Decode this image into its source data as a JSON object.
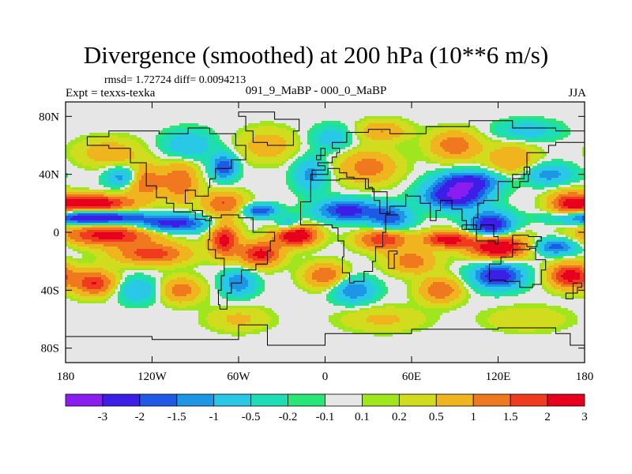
{
  "title": "Divergence (smoothed) at 200 hPa (10**6 m/s)",
  "stats_line": "rmsd= 1.72724 diff= 0.0094213",
  "experiment_label": "Expt = texxs-texka",
  "subtitle": "091_9_MaBP - 000_0_MaBP",
  "season": "JJA",
  "chart_data": {
    "type": "heatmap",
    "title": "Divergence (smoothed) at 200 hPa (10**6 m/s)",
    "xlabel": "",
    "ylabel": "",
    "xlim": [
      -180,
      180
    ],
    "ylim": [
      -90,
      90
    ],
    "x_ticks": [
      {
        "value": -180,
        "label": "180"
      },
      {
        "value": -120,
        "label": "120W"
      },
      {
        "value": -60,
        "label": "60W"
      },
      {
        "value": 0,
        "label": "0"
      },
      {
        "value": 60,
        "label": "60E"
      },
      {
        "value": 120,
        "label": "120E"
      },
      {
        "value": 180,
        "label": "180"
      }
    ],
    "y_ticks": [
      {
        "value": 80,
        "label": "80N"
      },
      {
        "value": 40,
        "label": "40N"
      },
      {
        "value": 0,
        "label": "0"
      },
      {
        "value": -40,
        "label": "40S"
      },
      {
        "value": -80,
        "label": "80S"
      }
    ],
    "colorbar": {
      "boundaries": [
        "-3",
        "-2",
        "-1.5",
        "-1",
        "-0.5",
        "-0.2",
        "-0.1",
        "0.1",
        "0.2",
        "0.5",
        "1",
        "1.5",
        "2",
        "3"
      ],
      "colors": [
        "#8a1ef0",
        "#3c1ee6",
        "#1e5ae6",
        "#1e96e6",
        "#28c8e6",
        "#1edcb4",
        "#28e678",
        "#e6e6e6",
        "#a0e61e",
        "#d2dc1e",
        "#f0b41e",
        "#f0781e",
        "#f03c1e",
        "#e6001e"
      ]
    },
    "features": [
      {
        "lon": -160,
        "lat": 10,
        "value": -3,
        "sx": 24,
        "sy": 3
      },
      {
        "lon": -105,
        "lat": 6,
        "value": -2.4,
        "sx": 16,
        "sy": 4
      },
      {
        "lon": -160,
        "lat": 20,
        "value": 2.6,
        "sx": 18,
        "sy": 4
      },
      {
        "lon": -150,
        "lat": -2,
        "value": 2.3,
        "sx": 22,
        "sy": 5
      },
      {
        "lon": -120,
        "lat": -15,
        "value": 1.8,
        "sx": 18,
        "sy": 5
      },
      {
        "lon": -150,
        "lat": 55,
        "value": 0.8,
        "sx": 16,
        "sy": 7
      },
      {
        "lon": -125,
        "lat": 35,
        "value": 1.5,
        "sx": 10,
        "sy": 8
      },
      {
        "lon": -100,
        "lat": 35,
        "value": 1.4,
        "sx": 8,
        "sy": 10
      },
      {
        "lon": -140,
        "lat": 38,
        "value": -1.5,
        "sx": 8,
        "sy": 5
      },
      {
        "lon": -95,
        "lat": 60,
        "value": -1.0,
        "sx": 12,
        "sy": 7
      },
      {
        "lon": -70,
        "lat": 45,
        "value": -2.0,
        "sx": 6,
        "sy": 6
      },
      {
        "lon": -70,
        "lat": 20,
        "value": 1.5,
        "sx": 10,
        "sy": 6
      },
      {
        "lon": -45,
        "lat": 15,
        "value": -2.0,
        "sx": 8,
        "sy": 3
      },
      {
        "lon": -70,
        "lat": -5,
        "value": 2.2,
        "sx": 7,
        "sy": 8
      },
      {
        "lon": -20,
        "lat": -2,
        "value": 3.0,
        "sx": 10,
        "sy": 5
      },
      {
        "lon": -45,
        "lat": -15,
        "value": 2.2,
        "sx": 10,
        "sy": 6
      },
      {
        "lon": -60,
        "lat": -35,
        "value": -1.5,
        "sx": 8,
        "sy": 6
      },
      {
        "lon": -25,
        "lat": 5,
        "value": -1.2,
        "sx": 6,
        "sy": 4
      },
      {
        "lon": -40,
        "lat": 60,
        "value": 0.8,
        "sx": 14,
        "sy": 8
      },
      {
        "lon": -10,
        "lat": 40,
        "value": -1.2,
        "sx": 8,
        "sy": 8
      },
      {
        "lon": 5,
        "lat": 65,
        "value": -0.8,
        "sx": 10,
        "sy": 6
      },
      {
        "lon": 30,
        "lat": 45,
        "value": 1.3,
        "sx": 14,
        "sy": 8
      },
      {
        "lon": 40,
        "lat": 70,
        "value": 1.0,
        "sx": 12,
        "sy": 5
      },
      {
        "lon": 15,
        "lat": 15,
        "value": -2.4,
        "sx": 14,
        "sy": 5
      },
      {
        "lon": 45,
        "lat": 10,
        "value": -1.8,
        "sx": 10,
        "sy": 6
      },
      {
        "lon": 40,
        "lat": -5,
        "value": 2.0,
        "sx": 12,
        "sy": 5
      },
      {
        "lon": 20,
        "lat": -40,
        "value": -1.5,
        "sx": 10,
        "sy": 6
      },
      {
        "lon": 60,
        "lat": -20,
        "value": 1.3,
        "sx": 12,
        "sy": 6
      },
      {
        "lon": 90,
        "lat": 25,
        "value": -3.0,
        "sx": 14,
        "sy": 6
      },
      {
        "lon": 100,
        "lat": 35,
        "value": -2.4,
        "sx": 14,
        "sy": 5
      },
      {
        "lon": 115,
        "lat": 5,
        "value": -2.8,
        "sx": 10,
        "sy": 6
      },
      {
        "lon": 120,
        "lat": -10,
        "value": 2.8,
        "sx": 14,
        "sy": 6
      },
      {
        "lon": 85,
        "lat": -5,
        "value": 2.3,
        "sx": 12,
        "sy": 4
      },
      {
        "lon": 90,
        "lat": 60,
        "value": 1.4,
        "sx": 12,
        "sy": 7
      },
      {
        "lon": 130,
        "lat": 50,
        "value": 1.0,
        "sx": 12,
        "sy": 8
      },
      {
        "lon": 155,
        "lat": 40,
        "value": -1.3,
        "sx": 12,
        "sy": 5
      },
      {
        "lon": 120,
        "lat": -30,
        "value": -2.6,
        "sx": 12,
        "sy": 6
      },
      {
        "lon": 170,
        "lat": -30,
        "value": 2.4,
        "sx": 10,
        "sy": 6
      },
      {
        "lon": 160,
        "lat": -10,
        "value": -1.8,
        "sx": 10,
        "sy": 4
      },
      {
        "lon": 170,
        "lat": 20,
        "value": 1.8,
        "sx": 10,
        "sy": 6
      },
      {
        "lon": -160,
        "lat": -35,
        "value": 2.0,
        "sx": 10,
        "sy": 6
      },
      {
        "lon": -130,
        "lat": -40,
        "value": -1.0,
        "sx": 10,
        "sy": 6
      },
      {
        "lon": -100,
        "lat": -40,
        "value": 1.3,
        "sx": 10,
        "sy": 6
      },
      {
        "lon": 0,
        "lat": -30,
        "value": 1.5,
        "sx": 10,
        "sy": 6
      },
      {
        "lon": 80,
        "lat": -40,
        "value": 1.5,
        "sx": 10,
        "sy": 6
      },
      {
        "lon": 40,
        "lat": -60,
        "value": 0.6,
        "sx": 20,
        "sy": 6
      },
      {
        "lon": -60,
        "lat": -60,
        "value": 0.6,
        "sx": 15,
        "sy": 6
      },
      {
        "lon": 140,
        "lat": -60,
        "value": 0.5,
        "sx": 20,
        "sy": 6
      },
      {
        "lon": 140,
        "lat": 70,
        "value": -0.8,
        "sx": 15,
        "sy": 5
      }
    ]
  }
}
